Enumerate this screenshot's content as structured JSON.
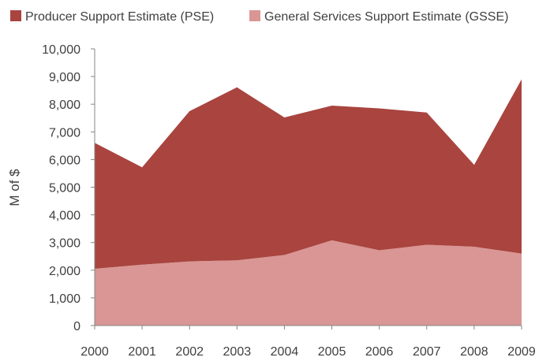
{
  "chart_data": {
    "type": "area",
    "stacked": true,
    "x": [
      "2000",
      "2001",
      "2002",
      "2003",
      "2004",
      "2005",
      "2006",
      "2007",
      "2008",
      "2009"
    ],
    "series": [
      {
        "name": "General Services Support Estimate (GSSE)",
        "values": [
          2050,
          2200,
          2320,
          2360,
          2550,
          3080,
          2720,
          2920,
          2850,
          2600
        ],
        "color": "#d99694"
      },
      {
        "name": "Producer Support Estimate (PSE)",
        "values": [
          4550,
          3520,
          5430,
          6250,
          4970,
          4870,
          5130,
          4780,
          2960,
          6300
        ],
        "color": "#a9443f"
      }
    ],
    "totals": [
      6600,
      5720,
      7750,
      8610,
      7520,
      7950,
      7850,
      7700,
      5810,
      8900
    ],
    "ylabel": "M of $",
    "ylim": [
      0,
      10000
    ],
    "yticks": [
      "0",
      "1,000",
      "2,000",
      "3,000",
      "4,000",
      "5,000",
      "6,000",
      "7,000",
      "8,000",
      "9,000",
      "10,000"
    ],
    "grid": false,
    "legend_position": "top"
  }
}
